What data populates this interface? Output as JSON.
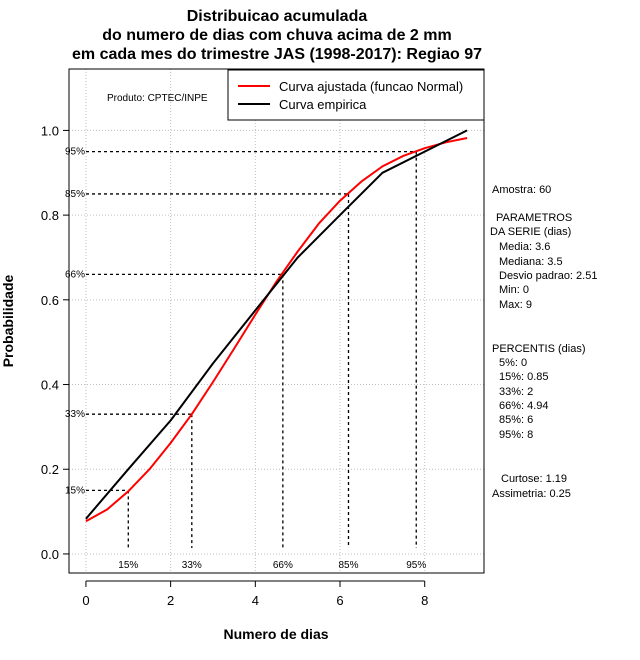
{
  "chart_data": {
    "type": "line",
    "title": [
      "Distribuicao acumulada",
      "do numero de dias com chuva acima de 2 mm",
      "em cada mes do trimestre JAS (1998-2017): Regiao 97"
    ],
    "xlabel": "Numero de dias",
    "ylabel": "Probabilidade",
    "xlim": [
      -0.4,
      9.4
    ],
    "ylim": [
      -0.045,
      1.145
    ],
    "x_ticks": [
      0,
      2,
      4,
      6,
      8
    ],
    "y_ticks": [
      0.0,
      0.2,
      0.4,
      0.6,
      0.8,
      1.0
    ],
    "x_tick_labels": [
      "0",
      "2",
      "4",
      "6",
      "8"
    ],
    "y_tick_labels": [
      "0.0",
      "0.2",
      "0.4",
      "0.6",
      "0.8",
      "1.0"
    ],
    "grid": true,
    "series": [
      {
        "name": "Curva ajustada (funcao Normal)",
        "color": "#ff0000",
        "x": [
          0,
          0.5,
          1,
          1.5,
          2,
          2.5,
          3,
          3.5,
          4,
          4.5,
          5,
          5.5,
          6,
          6.5,
          7,
          7.5,
          8,
          8.5,
          9
        ],
        "values": [
          0.077,
          0.105,
          0.148,
          0.2,
          0.262,
          0.33,
          0.406,
          0.485,
          0.565,
          0.643,
          0.714,
          0.78,
          0.834,
          0.879,
          0.915,
          0.94,
          0.958,
          0.972,
          0.982
        ]
      },
      {
        "name": "Curva empirica",
        "color": "#000000",
        "x": [
          0,
          1,
          2,
          3,
          4,
          5,
          6,
          7,
          8,
          9
        ],
        "values": [
          0.083,
          0.2,
          0.315,
          0.45,
          0.575,
          0.7,
          0.8,
          0.9,
          0.95,
          1.0
        ]
      }
    ],
    "percentile_lines": [
      {
        "label": "15%",
        "x": 1.0,
        "y": 0.15
      },
      {
        "label": "33%",
        "x": 2.5,
        "y": 0.33
      },
      {
        "label": "66%",
        "x": 4.65,
        "y": 0.66
      },
      {
        "label": "85%",
        "x": 6.2,
        "y": 0.85
      },
      {
        "label": "95%",
        "x": 7.8,
        "y": 0.95
      }
    ],
    "legend_position": "top-right"
  },
  "produto": "Produto: CPTEC/INPE",
  "stats": {
    "amostra": "Amostra: 60",
    "parametros_lines": [
      "PARAMETROS",
      "DA SERIE (dias)",
      "Media: 3.6",
      "Mediana: 3.5",
      "Desvio padrao: 2.51",
      "Min: 0",
      "Max: 9"
    ],
    "percentis_lines": [
      "PERCENTIS (dias)",
      "5%: 0",
      "15%: 0.85",
      "33%: 2",
      "66%: 4.94",
      "85%: 6",
      "95%: 8"
    ],
    "curtose": "Curtose: 1.19",
    "assimetria": "Assimetria: 0.25"
  }
}
